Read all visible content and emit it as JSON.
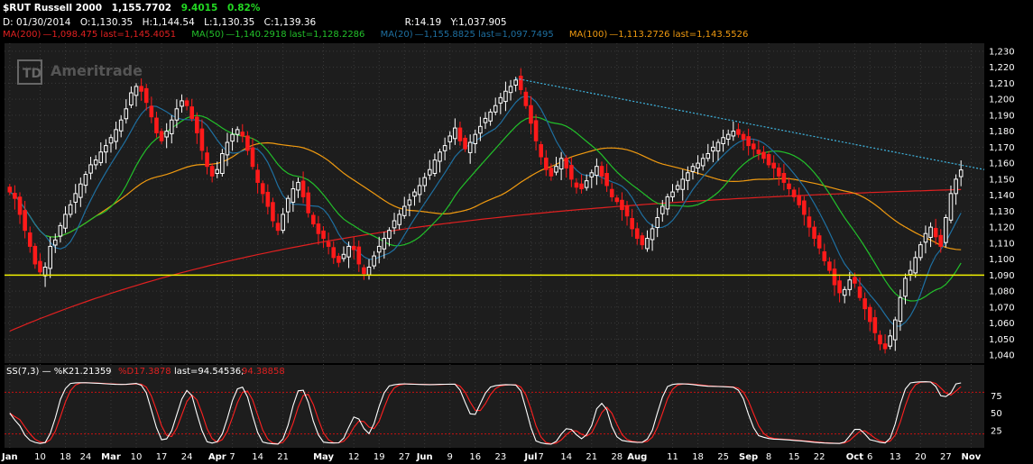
{
  "header": {
    "symbol": "$RUT Russell 2000",
    "last": "1,155.7702",
    "change": "9.4015",
    "change_pct": "0.82%",
    "date": "D: 01/30/2014",
    "open": "O:1,130.35",
    "high": "H:1,144.54",
    "low": "L:1,130.35",
    "close": "C:1,139.36",
    "range": "R:14.19",
    "y": "Y:1,037.905"
  },
  "studies": {
    "ma200": {
      "label": "MA(200)",
      "values": "1,098.475 last=1,145.4051",
      "color": "#e02020"
    },
    "ma50": {
      "label": "MA(50)",
      "values": "1,140.2918 last=1,128.2286",
      "color": "#22c02a"
    },
    "ma20": {
      "label": "MA(20)",
      "values": "1,155.8825 last=1,097.7495",
      "color": "#1e6fa0"
    },
    "ma100": {
      "label": "MA(100)",
      "values": "1,113.2726 last=1,143.5526",
      "color": "#f09a10"
    }
  },
  "osc_header": {
    "label": "SS(7,3)",
    "k": "%K21.21359",
    "d": "%D17.3878",
    "last": "last=94.54536;",
    "last2": "94.38858"
  },
  "watermark": "Ameritrade",
  "colors": {
    "up": "#ffffff",
    "down": "#ff1a1a",
    "support": "#f0f000",
    "trend": "#3fb5e0",
    "grid": "#3a3a3a",
    "bg": "#1d1d1d",
    "axis_text": "#ffffff"
  },
  "chart_data": [
    {
      "type": "candlestick",
      "xlabel": "",
      "ylabel": "",
      "ylim": [
        1035,
        1235
      ],
      "yticks": [
        "1,040",
        "1,050",
        "1,060",
        "1,070",
        "1,080",
        "1,090",
        "1,100",
        "1,110",
        "1,120",
        "1,130",
        "1,140",
        "1,150",
        "1,160",
        "1,170",
        "1,180",
        "1,190",
        "1,200",
        "1,210",
        "1,220",
        "1,230"
      ],
      "ytick_values": [
        1040,
        1050,
        1060,
        1070,
        1080,
        1090,
        1100,
        1110,
        1120,
        1130,
        1140,
        1150,
        1160,
        1170,
        1180,
        1190,
        1200,
        1210,
        1220,
        1230
      ],
      "x_ticks": [
        {
          "label": "Jan",
          "bar": 0,
          "bold": true
        },
        {
          "label": "10",
          "bar": 6
        },
        {
          "label": "18",
          "bar": 11
        },
        {
          "label": "24",
          "bar": 15
        },
        {
          "label": "Mar",
          "bar": 20,
          "bold": true
        },
        {
          "label": "10",
          "bar": 25
        },
        {
          "label": "17",
          "bar": 30
        },
        {
          "label": "24",
          "bar": 35
        },
        {
          "label": "Apr",
          "bar": 41,
          "bold": true
        },
        {
          "label": "7",
          "bar": 44
        },
        {
          "label": "14",
          "bar": 49
        },
        {
          "label": "21",
          "bar": 54
        },
        {
          "label": "May",
          "bar": 62,
          "bold": true
        },
        {
          "label": "12",
          "bar": 68
        },
        {
          "label": "19",
          "bar": 73
        },
        {
          "label": "27",
          "bar": 78
        },
        {
          "label": "Jun",
          "bar": 82,
          "bold": true
        },
        {
          "label": "9",
          "bar": 87
        },
        {
          "label": "16",
          "bar": 92
        },
        {
          "label": "23",
          "bar": 97
        },
        {
          "label": "Jul",
          "bar": 103,
          "bold": true
        },
        {
          "label": "7",
          "bar": 105
        },
        {
          "label": "14",
          "bar": 110
        },
        {
          "label": "21",
          "bar": 115
        },
        {
          "label": "28",
          "bar": 120
        },
        {
          "label": "Aug",
          "bar": 124,
          "bold": true
        },
        {
          "label": "11",
          "bar": 131
        },
        {
          "label": "18",
          "bar": 136
        },
        {
          "label": "25",
          "bar": 141
        },
        {
          "label": "Sep",
          "bar": 146,
          "bold": true
        },
        {
          "label": "8",
          "bar": 150
        },
        {
          "label": "15",
          "bar": 155
        },
        {
          "label": "22",
          "bar": 160
        },
        {
          "label": "Oct",
          "bar": 167,
          "bold": true
        },
        {
          "label": "6",
          "bar": 170
        },
        {
          "label": "13",
          "bar": 175
        },
        {
          "label": "20",
          "bar": 180
        },
        {
          "label": "27",
          "bar": 185
        },
        {
          "label": "Nov",
          "bar": 190,
          "bold": true
        }
      ],
      "closes": [
        1142,
        1138,
        1128,
        1118,
        1108,
        1097,
        1092,
        1095,
        1108,
        1112,
        1121,
        1128,
        1134,
        1141,
        1147,
        1153,
        1159,
        1162,
        1167,
        1171,
        1176,
        1181,
        1187,
        1194,
        1204,
        1208,
        1205,
        1198,
        1189,
        1179,
        1174,
        1180,
        1187,
        1194,
        1199,
        1196,
        1188,
        1179,
        1168,
        1158,
        1152,
        1156,
        1166,
        1173,
        1178,
        1181,
        1177,
        1168,
        1158,
        1148,
        1141,
        1133,
        1124,
        1118,
        1128,
        1138,
        1144,
        1148,
        1139,
        1129,
        1122,
        1116,
        1113,
        1108,
        1101,
        1098,
        1103,
        1108,
        1106,
        1097,
        1091,
        1095,
        1102,
        1108,
        1113,
        1118,
        1124,
        1128,
        1133,
        1137,
        1142,
        1146,
        1151,
        1156,
        1162,
        1167,
        1171,
        1177,
        1182,
        1174,
        1169,
        1173,
        1178,
        1183,
        1188,
        1192,
        1196,
        1201,
        1205,
        1208,
        1212,
        1206,
        1196,
        1185,
        1174,
        1164,
        1156,
        1152,
        1158,
        1163,
        1157,
        1150,
        1145,
        1144,
        1149,
        1154,
        1158,
        1152,
        1146,
        1139,
        1136,
        1131,
        1127,
        1119,
        1113,
        1109,
        1113,
        1119,
        1126,
        1133,
        1139,
        1142,
        1146,
        1150,
        1154,
        1158,
        1160,
        1163,
        1166,
        1170,
        1173,
        1176,
        1178,
        1180,
        1178,
        1175,
        1171,
        1169,
        1166,
        1163,
        1159,
        1157,
        1152,
        1148,
        1144,
        1139,
        1134,
        1128,
        1120,
        1113,
        1107,
        1099,
        1093,
        1084,
        1079,
        1081,
        1087,
        1085,
        1076,
        1069,
        1061,
        1054,
        1047,
        1044,
        1052,
        1062,
        1076,
        1088,
        1093,
        1101,
        1109,
        1116,
        1120,
        1114,
        1108,
        1126,
        1141,
        1150,
        1155.77
      ]
    },
    {
      "type": "line",
      "series": [
        {
          "name": "%K",
          "color": "#ffffff"
        },
        {
          "name": "%D",
          "color": "#ff2020"
        }
      ],
      "ylim": [
        0,
        100
      ],
      "yticks": [
        "25",
        "50",
        "75"
      ],
      "ytick_values": [
        25,
        50,
        75
      ],
      "levels": [
        80,
        20
      ]
    }
  ]
}
